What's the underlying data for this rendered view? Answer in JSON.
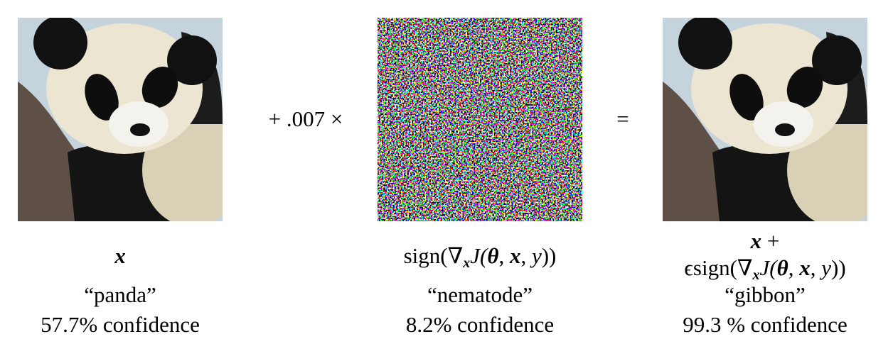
{
  "panels": [
    {
      "formula": [
        "x"
      ],
      "label": "“panda”",
      "confidence": "57.7% confidence"
    },
    {
      "formula": [
        "sign(∇",
        "x",
        "J(",
        "θ",
        ", ",
        "x",
        ", ",
        "y",
        "))"
      ],
      "label": "“nematode”",
      "confidence": "8.2% confidence"
    },
    {
      "formula_line1": [
        "x",
        " +"
      ],
      "formula": [
        "ϵsign(∇",
        "x",
        "J(",
        "θ",
        ", ",
        "x",
        ", ",
        "y",
        "))"
      ],
      "label": "“gibbon”",
      "confidence": "99.3 % confidence"
    }
  ],
  "operators": [
    "+ .007 ×",
    "="
  ]
}
